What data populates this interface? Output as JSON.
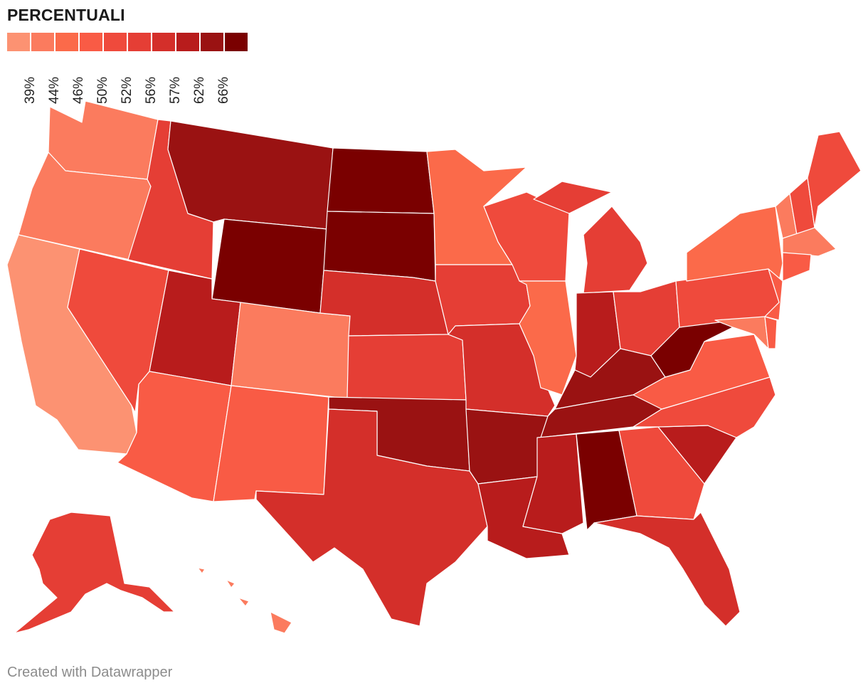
{
  "title": "PERCENTUALI",
  "footer": "Created with Datawrapper",
  "legend": {
    "colors": [
      "#fc9272",
      "#fb7b5e",
      "#fb6a4a",
      "#f95b45",
      "#ef4a3c",
      "#e53e35",
      "#d42f2a",
      "#b81c1c",
      "#9a1212",
      "#7a0000"
    ],
    "ticks": [
      "39%",
      "44%",
      "46%",
      "50%",
      "52%",
      "56%",
      "57%",
      "62%",
      "66%"
    ]
  },
  "states": [
    {
      "id": "WA",
      "bin": 1
    },
    {
      "id": "OR",
      "bin": 1
    },
    {
      "id": "CA",
      "bin": 0
    },
    {
      "id": "ID",
      "bin": 5
    },
    {
      "id": "NV",
      "bin": 4
    },
    {
      "id": "MT",
      "bin": 8
    },
    {
      "id": "WY",
      "bin": 9
    },
    {
      "id": "UT",
      "bin": 7
    },
    {
      "id": "AZ",
      "bin": 3
    },
    {
      "id": "CO",
      "bin": 1
    },
    {
      "id": "NM",
      "bin": 3
    },
    {
      "id": "ND",
      "bin": 9
    },
    {
      "id": "SD",
      "bin": 9
    },
    {
      "id": "NE",
      "bin": 6
    },
    {
      "id": "KS",
      "bin": 5
    },
    {
      "id": "OK",
      "bin": 8
    },
    {
      "id": "TX",
      "bin": 6
    },
    {
      "id": "MN",
      "bin": 2
    },
    {
      "id": "IA",
      "bin": 5
    },
    {
      "id": "MO",
      "bin": 6
    },
    {
      "id": "AR",
      "bin": 8
    },
    {
      "id": "LA",
      "bin": 7
    },
    {
      "id": "WI",
      "bin": 4
    },
    {
      "id": "IL",
      "bin": 2
    },
    {
      "id": "MI",
      "bin": 5
    },
    {
      "id": "IN",
      "bin": 7
    },
    {
      "id": "OH",
      "bin": 5
    },
    {
      "id": "KY",
      "bin": 8
    },
    {
      "id": "TN",
      "bin": 8
    },
    {
      "id": "MS",
      "bin": 7
    },
    {
      "id": "AL",
      "bin": 9
    },
    {
      "id": "GA",
      "bin": 4
    },
    {
      "id": "FL",
      "bin": 6
    },
    {
      "id": "SC",
      "bin": 7
    },
    {
      "id": "NC",
      "bin": 4
    },
    {
      "id": "VA",
      "bin": 3
    },
    {
      "id": "WV",
      "bin": 9
    },
    {
      "id": "PA",
      "bin": 4
    },
    {
      "id": "NY",
      "bin": 2
    },
    {
      "id": "VT",
      "bin": 1
    },
    {
      "id": "NH",
      "bin": 4
    },
    {
      "id": "ME",
      "bin": 4
    },
    {
      "id": "MA",
      "bin": 1
    },
    {
      "id": "CT",
      "bin": 3
    },
    {
      "id": "NJ",
      "bin": 3
    },
    {
      "id": "MD",
      "bin": 1
    },
    {
      "id": "DE",
      "bin": 3
    },
    {
      "id": "AK",
      "bin": 5
    },
    {
      "id": "HI",
      "bin": 1
    }
  ]
}
